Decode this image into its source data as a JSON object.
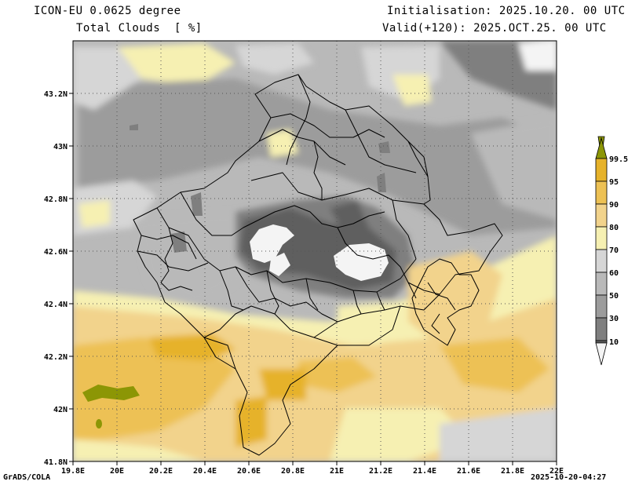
{
  "header": {
    "model": "ICON-EU 0.0625 degree",
    "variable": "Total Clouds  [ %]",
    "init": "Initialisation: 2025.10.20. 00 UTC",
    "valid": "Valid(+120): 2025.OCT.25. 00 UTC"
  },
  "footer": {
    "credit": "GrADS/COLA",
    "timestamp": "2025-10-20-04:27"
  },
  "axes": {
    "lon_ticks": [
      "19.8E",
      "20E",
      "20.2E",
      "20.4E",
      "20.6E",
      "20.8E",
      "21E",
      "21.2E",
      "21.4E",
      "21.6E",
      "21.8E",
      "22E"
    ],
    "lat_ticks": [
      "43.2N",
      "43N",
      "42.8N",
      "42.6N",
      "42.4N",
      "42.2N",
      "42N",
      "41.8N"
    ]
  },
  "legend": {
    "labels": [
      "99.5",
      "95",
      "90",
      "80",
      "70",
      "60",
      "50",
      "30",
      "10"
    ],
    "colors": [
      "#8c9605",
      "#e6b22a",
      "#edc154",
      "#f2d38c",
      "#f6f0b2",
      "#d6d6d6",
      "#b9b9b9",
      "#9c9c9c",
      "#7f7f7f",
      "#5e5e5e",
      "#f4f4f4"
    ]
  }
}
